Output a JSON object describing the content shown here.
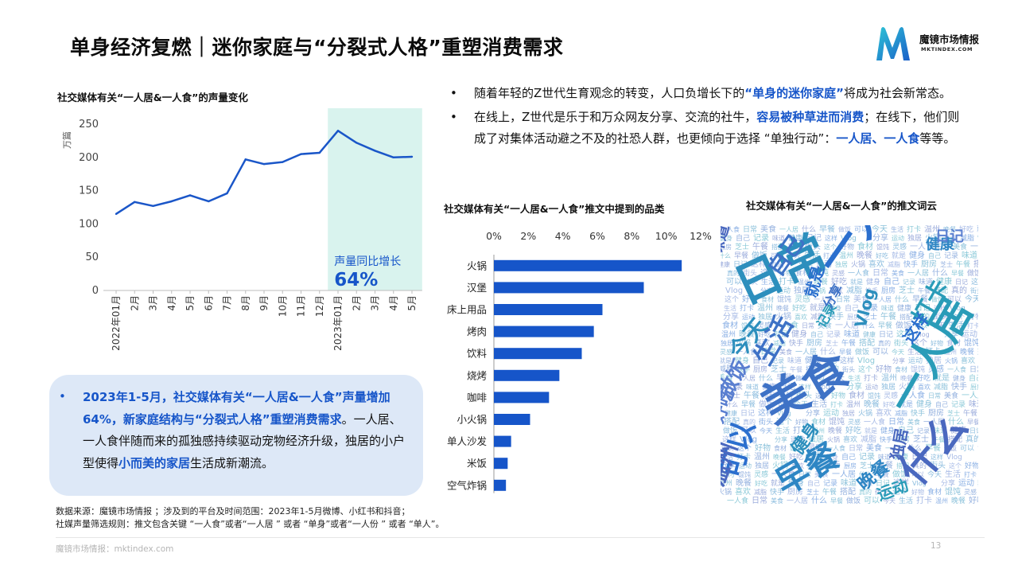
{
  "page": {
    "title": "单身经济复燃｜迷你家庭与“分裂式人格”重塑消费需求",
    "brand_name": "魔镜市场情报",
    "brand_url": "MKTINDEX.COM",
    "page_number": "13",
    "footer": "魔镜市场情报：mktindex.com"
  },
  "left_box": {
    "bullet": "•",
    "highlight": "2023年1-5月，社交媒体有关“一人居&一人食”声量增加64%，新家庭结构与“分裂式人格”重塑消费需求",
    "rest_1": "。一人居、一人食伴随而来的孤独感持续驱动宠物经济升级，独居的小户型使得",
    "highlight_2": "小而美的家居",
    "rest_2": "生活成新潮流。"
  },
  "right_bullets": [
    {
      "dot": "•",
      "t1": "随着年轻的Z世代生育观念的转变，人口负增长下的",
      "h1": "“单身的迷你家庭”",
      "t2": "将成为社会新常态。"
    },
    {
      "dot": "•",
      "t1": "在线上，Z世代是乐于和万众网友分享、交流的社牛，",
      "h1": "容易被种草进而消费",
      "t2": "；在线下，他们则成了对集体活动避之不及的社恐人群，也更倾向于选择 “单独行动”：",
      "h2": "一人居、一人食",
      "t3": "等等。"
    }
  ],
  "source": {
    "line1": "数据来源：魔镜市场情报 ；涉及到的平台及时间范围：2023年1-5月微博、小红书和抖音；",
    "line2": "社媒声量筛选规则：推文包含关键 “一人食”或者“一人居 ” 或者 “单身”或者“一人份 ” 或者 “单人”。"
  },
  "colors": {
    "accent": "#1655c9",
    "line": "#1a56c8",
    "highlight_bg": "#d9f3ee",
    "box_bg": "#dde8f7"
  },
  "chart_data": [
    {
      "type": "line",
      "title": "社交媒体有关“一人居&一人食”的声量变化",
      "ylabel": "万篇",
      "ylim": [
        0,
        250
      ],
      "yticks": [
        0,
        50,
        100,
        150,
        200,
        250
      ],
      "categories": [
        "2022年01月",
        "2月",
        "3月",
        "4月",
        "5月",
        "6月",
        "7月",
        "8月",
        "9月",
        "10月",
        "11月",
        "12月",
        "2023年01月",
        "2月",
        "3月",
        "4月",
        "5月"
      ],
      "values": [
        115,
        133,
        127,
        134,
        143,
        134,
        146,
        197,
        190,
        193,
        205,
        207,
        240,
        222,
        210,
        200,
        201
      ],
      "highlight_range": [
        "2023年01月",
        "5月"
      ],
      "annotation_label": "声量同比增长",
      "annotation_value": "64%",
      "grid": false
    },
    {
      "type": "bar",
      "orientation": "horizontal",
      "title": "社交媒体有关“一人居&一人食”推文中提到的品类",
      "categories": [
        "火锅",
        "汉堡",
        "床上用品",
        "烤肉",
        "饮料",
        "烧烤",
        "咖啡",
        "小火锅",
        "单人沙发",
        "米饭",
        "空气炸锅"
      ],
      "values": [
        10.9,
        8.7,
        6.3,
        5.8,
        5.1,
        3.8,
        3.2,
        2.1,
        1.0,
        0.8,
        0.7
      ],
      "xlim": [
        0,
        12
      ],
      "xticks": [
        "0%",
        "2%",
        "4%",
        "6%",
        "8%",
        "10%",
        "12%"
      ],
      "grid": false
    },
    {
      "type": "wordcloud",
      "title": "社交媒体有关“一人居&一人食”的推文词云",
      "words": [
        "一人食",
        "日常",
        "美食",
        "一人居",
        "什么",
        "早餐",
        "做饭",
        "可以",
        "今天",
        "生活",
        "打卡",
        "温州",
        "晚餐",
        "好吃",
        "就是",
        "健身",
        "自己",
        "记录",
        "味道",
        "健康",
        "日记",
        "这样",
        "Vlog",
        "分享",
        "运动",
        "独居",
        "火锅",
        "喜欢",
        "减脂",
        "快手",
        "厨房",
        "芝士",
        "午餐",
        "搭配",
        "真的",
        "街头",
        "这个",
        "好物",
        "食材",
        "馄饨",
        "灵感"
      ]
    }
  ]
}
